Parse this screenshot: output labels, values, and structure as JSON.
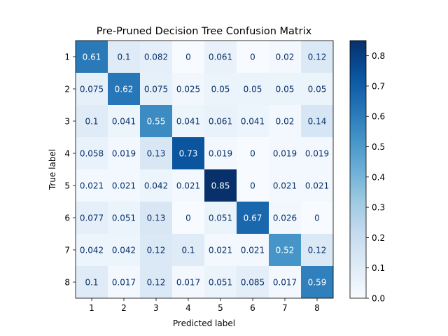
{
  "chart_data": {
    "type": "heatmap",
    "title": "Pre-Pruned Decision Tree Confusion Matrix",
    "xlabel": "Predicted label",
    "ylabel": "True label",
    "x_categories": [
      "1",
      "2",
      "3",
      "4",
      "5",
      "6",
      "7",
      "8"
    ],
    "y_categories": [
      "1",
      "2",
      "3",
      "4",
      "5",
      "6",
      "7",
      "8"
    ],
    "values": [
      [
        0.61,
        0.1,
        0.082,
        0,
        0.061,
        0,
        0.02,
        0.12
      ],
      [
        0.075,
        0.62,
        0.075,
        0.025,
        0.05,
        0.05,
        0.05,
        0.05
      ],
      [
        0.1,
        0.041,
        0.55,
        0.041,
        0.061,
        0.041,
        0.02,
        0.14
      ],
      [
        0.058,
        0.019,
        0.13,
        0.73,
        0.019,
        0,
        0.019,
        0.019
      ],
      [
        0.021,
        0.021,
        0.042,
        0.021,
        0.85,
        0,
        0.021,
        0.021
      ],
      [
        0.077,
        0.051,
        0.13,
        0,
        0.051,
        0.67,
        0.026,
        0
      ],
      [
        0.042,
        0.042,
        0.12,
        0.1,
        0.021,
        0.021,
        0.52,
        0.12
      ],
      [
        0.1,
        0.017,
        0.12,
        0.017,
        0.051,
        0.085,
        0.017,
        0.59
      ]
    ],
    "colormap": "Blues",
    "vmin": 0,
    "vmax": 0.85,
    "colorbar_ticks": [
      "0.0",
      "0.1",
      "0.2",
      "0.3",
      "0.4",
      "0.5",
      "0.6",
      "0.7",
      "0.8"
    ],
    "grid": false,
    "light_text_color": "#ffffff",
    "dark_text_color": "#08306b"
  }
}
